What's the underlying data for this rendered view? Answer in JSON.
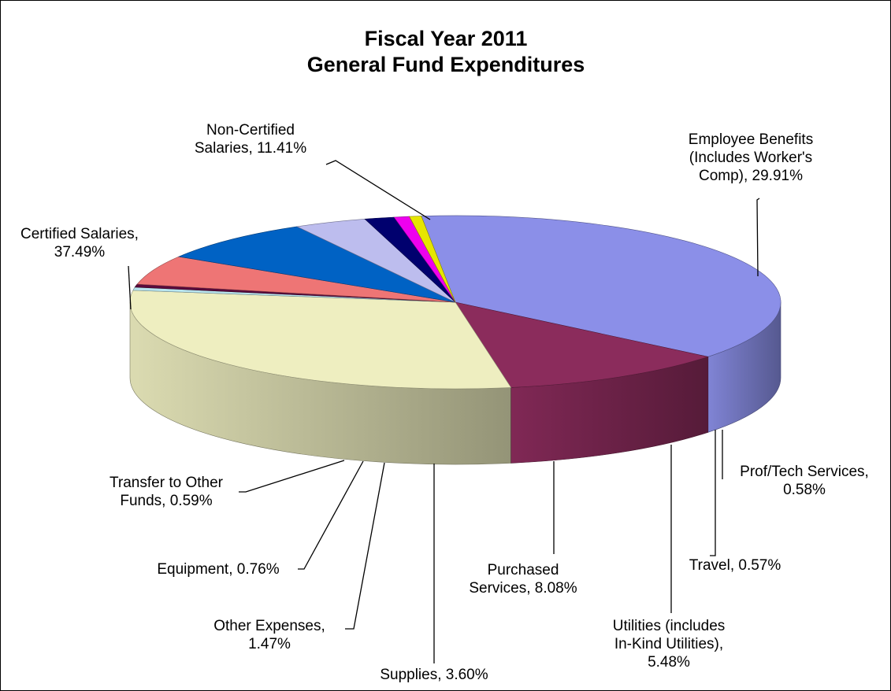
{
  "chart_data": {
    "type": "pie",
    "style": "3d-exploded-perspective",
    "title_lines": [
      "Fiscal Year 2011",
      "General Fund Expenditures"
    ],
    "slices": [
      {
        "name": "Certified Salaries",
        "value": 37.49,
        "label_lines": [
          "Certified Salaries,",
          "37.49%"
        ],
        "color": "#8B8FE8"
      },
      {
        "name": "Non-Certified Salaries",
        "value": 11.41,
        "label_lines": [
          "Non-Certified",
          "Salaries, 11.41%"
        ],
        "color": "#8B2C5C"
      },
      {
        "name": "Employee Benefits (Includes Worker's Comp)",
        "value": 29.91,
        "label_lines": [
          "Employee Benefits",
          "(Includes Worker's",
          "Comp), 29.91%"
        ],
        "color": "#EEEEC0"
      },
      {
        "name": "Prof/Tech Services",
        "value": 0.58,
        "label_lines": [
          "Prof/Tech Services,",
          "0.58%"
        ],
        "color": "#B8E4EE"
      },
      {
        "name": "Travel",
        "value": 0.57,
        "label_lines": [
          "Travel, 0.57%"
        ],
        "color": "#5A0A3C"
      },
      {
        "name": "Utilities (includes In-Kind Utilities)",
        "value": 5.48,
        "label_lines": [
          "Utilities (includes",
          "In-Kind Utilities),",
          "5.48%"
        ],
        "color": "#EE7575"
      },
      {
        "name": "Purchased Services",
        "value": 8.08,
        "label_lines": [
          "Purchased",
          "Services, 8.08%"
        ],
        "color": "#0062C4"
      },
      {
        "name": "Supplies",
        "value": 3.6,
        "label_lines": [
          "Supplies, 3.60%"
        ],
        "color": "#BDBDEE"
      },
      {
        "name": "Other Expenses",
        "value": 1.47,
        "label_lines": [
          "Other Expenses,",
          "1.47%"
        ],
        "color": "#00006E"
      },
      {
        "name": "Equipment",
        "value": 0.76,
        "label_lines": [
          "Equipment, 0.76%"
        ],
        "color": "#EE00EE"
      },
      {
        "name": "Transfer to Other Funds",
        "value": 0.59,
        "label_lines": [
          "Transfer to Other",
          "Funds, 0.59%"
        ],
        "color": "#E6E600"
      }
    ]
  }
}
